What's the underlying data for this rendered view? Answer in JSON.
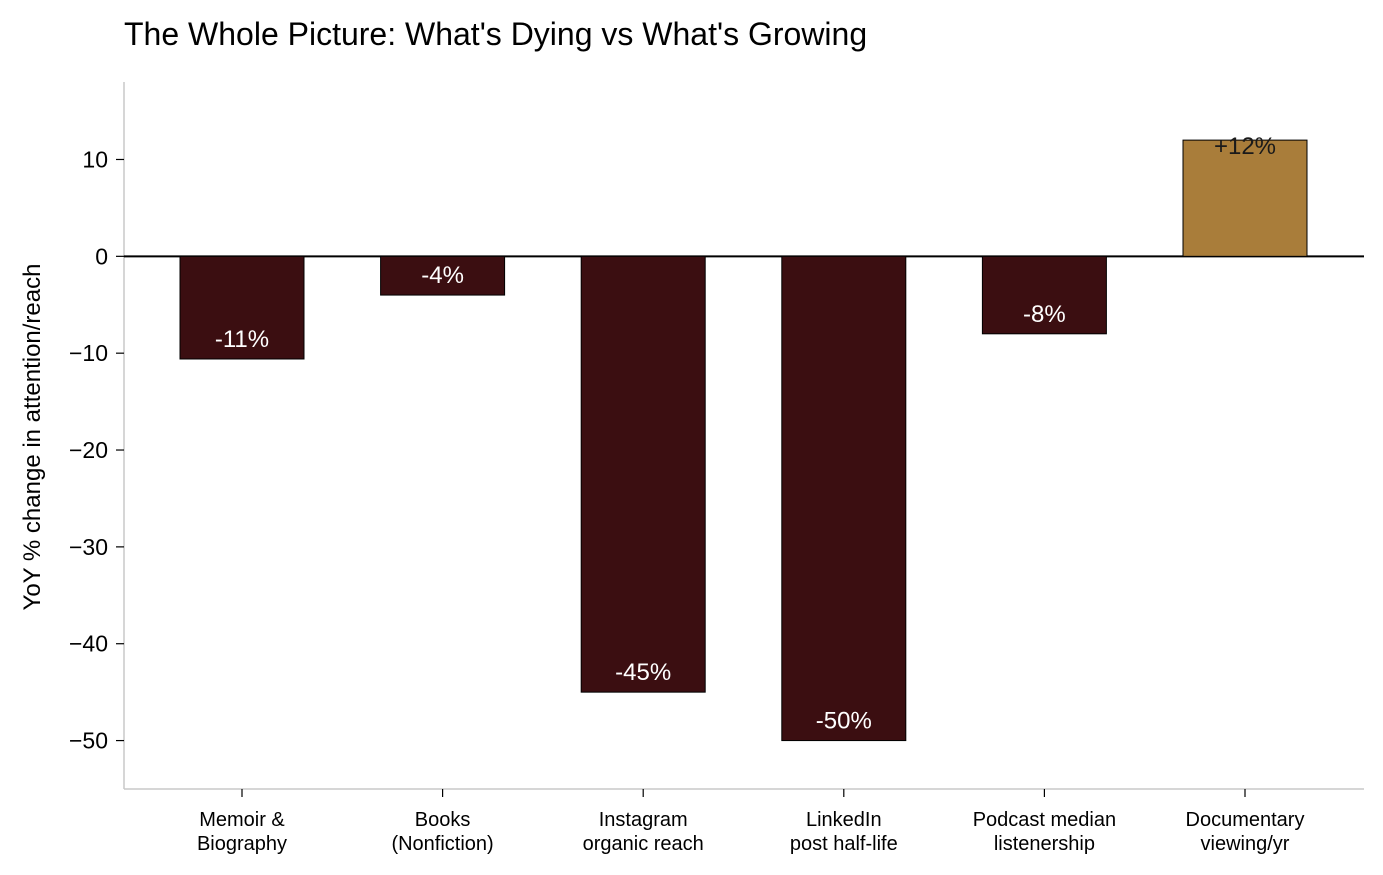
{
  "chart_data": {
    "type": "bar",
    "title": "The Whole Picture: What's Dying vs What's Growing",
    "xlabel": "",
    "ylabel": "YoY % change in attention/reach",
    "ylim": [
      -55,
      18
    ],
    "yticks": [
      10,
      0,
      -10,
      -20,
      -30,
      -40,
      -50
    ],
    "ytick_labels": [
      "10",
      "0",
      "−10",
      "−20",
      "−30",
      "−40",
      "−50"
    ],
    "categories": [
      [
        "Memoir &",
        "Biography"
      ],
      [
        "Books",
        "(Nonfiction)"
      ],
      [
        "Instagram",
        "organic reach"
      ],
      [
        "LinkedIn",
        "post half-life"
      ],
      [
        "Podcast median",
        "listenership"
      ],
      [
        "Documentary",
        "viewing/yr"
      ]
    ],
    "values": [
      -10.6,
      -4,
      -45,
      -50,
      -8,
      12
    ],
    "data_labels": [
      "-11%",
      "-4%",
      "-45%",
      "-50%",
      "-8%",
      "+12%"
    ],
    "colors": {
      "declining": "#3b0e11",
      "growing": "#a97d3a",
      "label_on_declining": "#ffffff",
      "label_on_growing": "#1a1a1a"
    },
    "grid": false,
    "legend": "none"
  }
}
